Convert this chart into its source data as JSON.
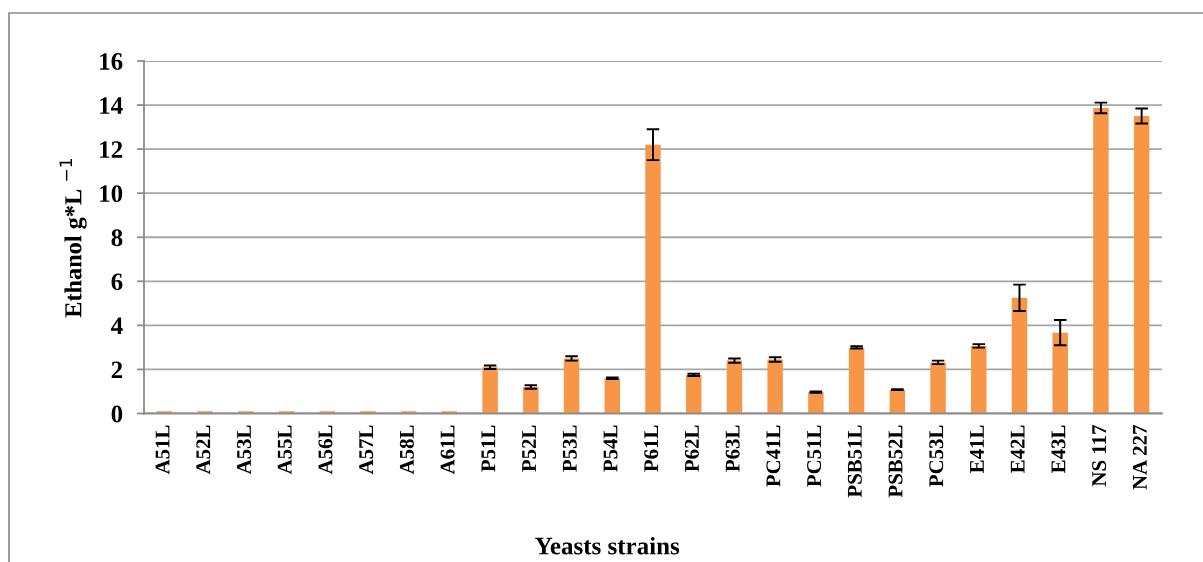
{
  "chart_data": {
    "type": "bar",
    "xlabel": "Yeasts strains",
    "ylabel": "Ethanol g*L $^{−1}$",
    "categories": [
      "A51L",
      "A52L",
      "A53L",
      "A55L",
      "A56L",
      "A57L",
      "A58L",
      "A61L",
      "P51L",
      "P52L",
      "P53L",
      "P54L",
      "P61L",
      "P62L",
      "P63L",
      "PC41L",
      "PC51L",
      "PSB51L",
      "PSB52L",
      "PC53L",
      "E41L",
      "E42L",
      "E43L",
      "NS 117",
      "NA 227"
    ],
    "values": [
      0.1,
      0.1,
      0.1,
      0.1,
      0.1,
      0.1,
      0.1,
      0.1,
      2.1,
      1.2,
      2.5,
      1.6,
      12.2,
      1.75,
      2.4,
      2.45,
      0.97,
      3.0,
      1.08,
      2.32,
      3.07,
      5.25,
      3.67,
      13.87,
      13.5
    ],
    "errors": [
      null,
      null,
      null,
      null,
      null,
      null,
      null,
      null,
      0.08,
      0.08,
      0.1,
      0.03,
      0.7,
      0.05,
      0.1,
      0.1,
      0.03,
      0.05,
      0.02,
      0.08,
      0.08,
      0.6,
      0.57,
      0.24,
      0.34
    ],
    "color": "#f79646",
    "ylim": [
      0,
      16
    ],
    "yticks": [
      0,
      2,
      4,
      6,
      8,
      10,
      12,
      14,
      16
    ],
    "grid": "y"
  }
}
